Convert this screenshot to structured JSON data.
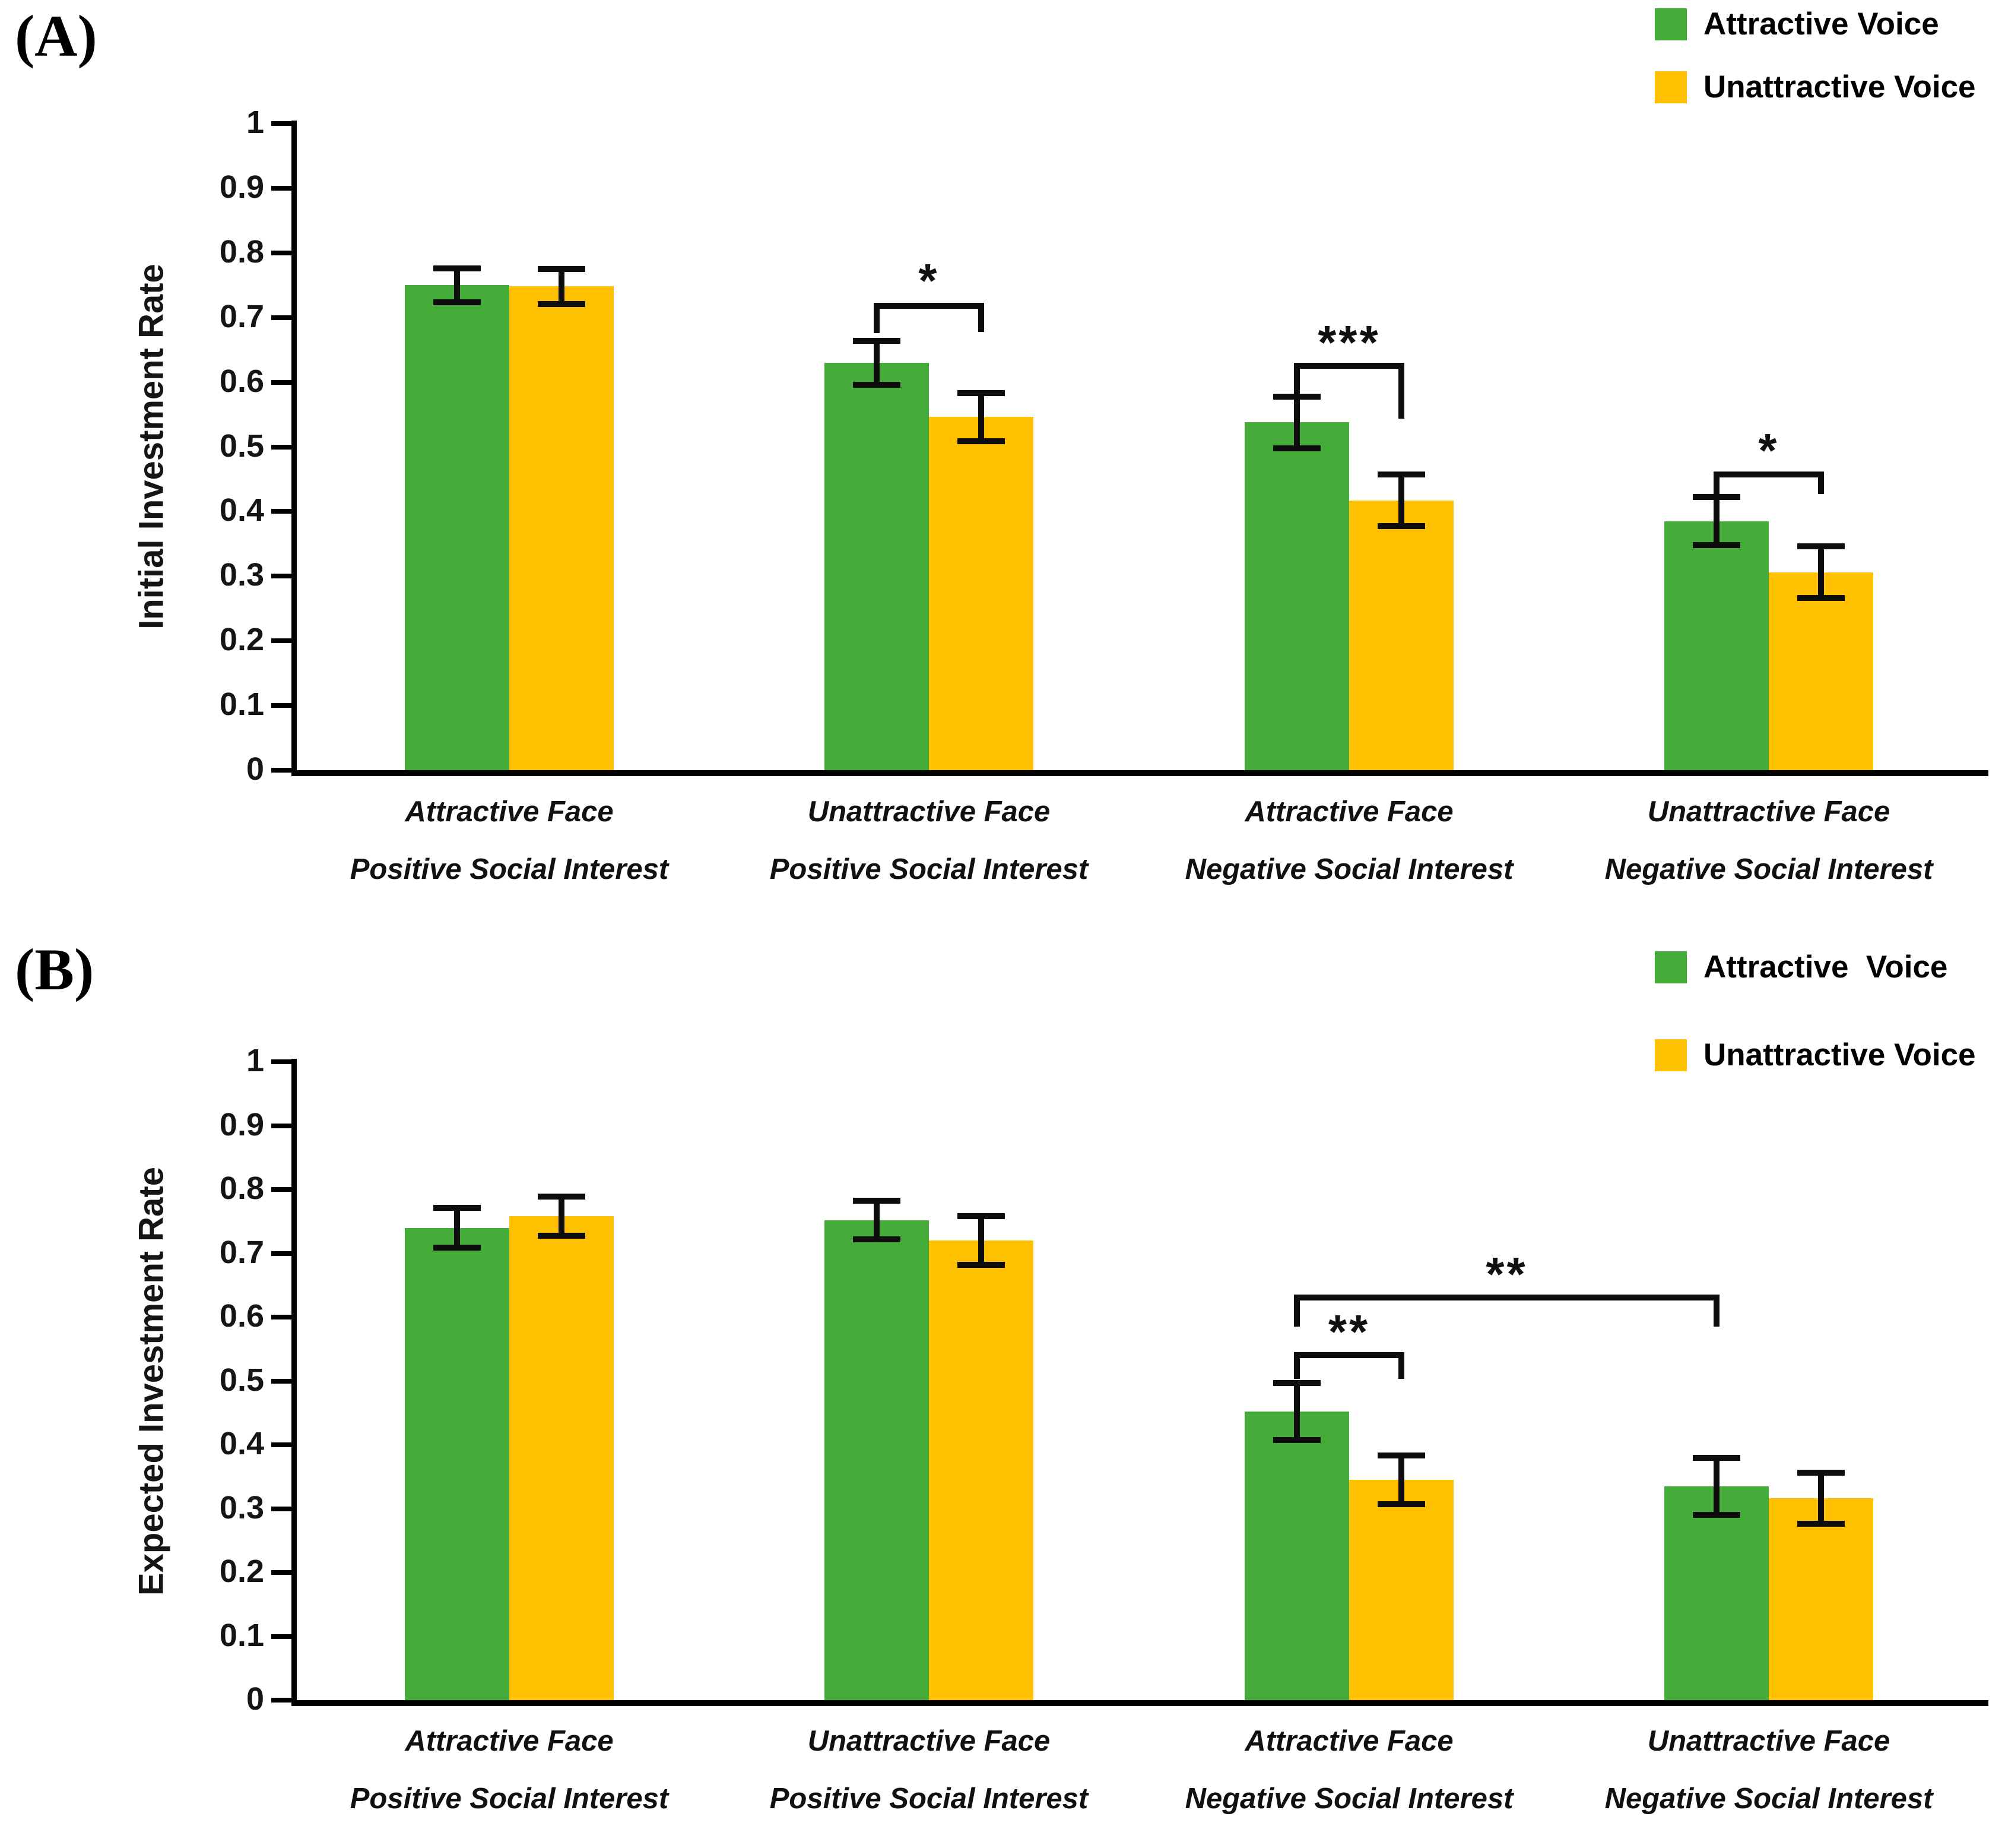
{
  "chart_data": [
    {
      "id": "A",
      "type": "bar",
      "label": "(A)",
      "ylabel": "Initial Investment Rate",
      "ylim": [
        0,
        1
      ],
      "yticks": [
        "1",
        "0.9",
        "0.8",
        "0.7",
        "0.6",
        "0.5",
        "0.4",
        "0.3",
        "0.2",
        "0.1",
        "0"
      ],
      "grid": false,
      "legend_position": "top-right",
      "legend": [
        {
          "name": "Attractive Voice",
          "color": "#45AB39"
        },
        {
          "name": "Unattractive Voice",
          "color": "#FFC000"
        }
      ],
      "categories": [
        [
          "Attractive Face",
          "Positive Social Interest"
        ],
        [
          "Unattractive Face",
          "Positive Social Interest"
        ],
        [
          "Attractive Face",
          "Negative Social Interest"
        ],
        [
          "Unattractive Face",
          "Negative Social Interest"
        ]
      ],
      "series": [
        {
          "name": "Attractive Voice",
          "color": "#45AB39",
          "values": [
            0.75,
            0.63,
            0.538,
            0.385
          ],
          "errors": [
            0.026,
            0.034,
            0.04,
            0.037
          ]
        },
        {
          "name": "Unattractive Voice",
          "color": "#FFC000",
          "values": [
            0.748,
            0.546,
            0.417,
            0.306
          ],
          "errors": [
            0.027,
            0.037,
            0.04,
            0.04
          ]
        }
      ],
      "significance": [
        {
          "from": {
            "group": 1,
            "series": 0
          },
          "to": {
            "group": 1,
            "series": 1
          },
          "y": 0.723,
          "drop_from": 0.047,
          "drop_to": 0.045,
          "label": "*",
          "label_y": 0.768
        },
        {
          "from": {
            "group": 2,
            "series": 0
          },
          "to": {
            "group": 2,
            "series": 1
          },
          "y": 0.63,
          "drop_from": 0.048,
          "drop_to": 0.086,
          "label": "***",
          "label_y": 0.672
        },
        {
          "from": {
            "group": 3,
            "series": 0
          },
          "to": {
            "group": 3,
            "series": 1
          },
          "y": 0.462,
          "drop_from": 0.035,
          "drop_to": 0.035,
          "label": "*",
          "label_y": 0.505
        }
      ]
    },
    {
      "id": "B",
      "type": "bar",
      "label": "(B)",
      "ylabel": "Expected Investment Rate",
      "ylim": [
        0,
        1
      ],
      "yticks": [
        "1",
        "0.9",
        "0.8",
        "0.7",
        "0.6",
        "0.5",
        "0.4",
        "0.3",
        "0.2",
        "0.1",
        "0"
      ],
      "grid": false,
      "legend_position": "top-right",
      "legend": [
        {
          "name": "Attractive  Voice",
          "color": "#45AB39"
        },
        {
          "name": "Unattractive Voice",
          "color": "#FFC000"
        }
      ],
      "categories": [
        [
          "Attractive Face",
          "Positive Social Interest"
        ],
        [
          "Unattractive Face",
          "Positive Social Interest"
        ],
        [
          "Attractive Face",
          "Negative Social Interest"
        ],
        [
          "Unattractive Face",
          "Negative Social Interest"
        ]
      ],
      "series": [
        {
          "name": "Attractive Voice",
          "color": "#45AB39",
          "values": [
            0.74,
            0.752,
            0.452,
            0.335
          ],
          "errors": [
            0.031,
            0.03,
            0.045,
            0.045
          ]
        },
        {
          "name": "Unattractive Voice",
          "color": "#FFC000",
          "values": [
            0.758,
            0.72,
            0.345,
            0.316
          ],
          "errors": [
            0.031,
            0.038,
            0.038,
            0.04
          ]
        }
      ],
      "significance": [
        {
          "from": {
            "group": 2,
            "series": 0
          },
          "to": {
            "group": 2,
            "series": 1
          },
          "y": 0.545,
          "drop_from": 0.042,
          "drop_to": 0.042,
          "label": "**",
          "label_y": 0.588
        },
        {
          "from": {
            "group": 2,
            "series": 0
          },
          "to": {
            "group": 3,
            "series": 0
          },
          "y": 0.635,
          "drop_from": 0.05,
          "drop_to": 0.05,
          "label": "**",
          "label_y": 0.678
        }
      ]
    }
  ]
}
